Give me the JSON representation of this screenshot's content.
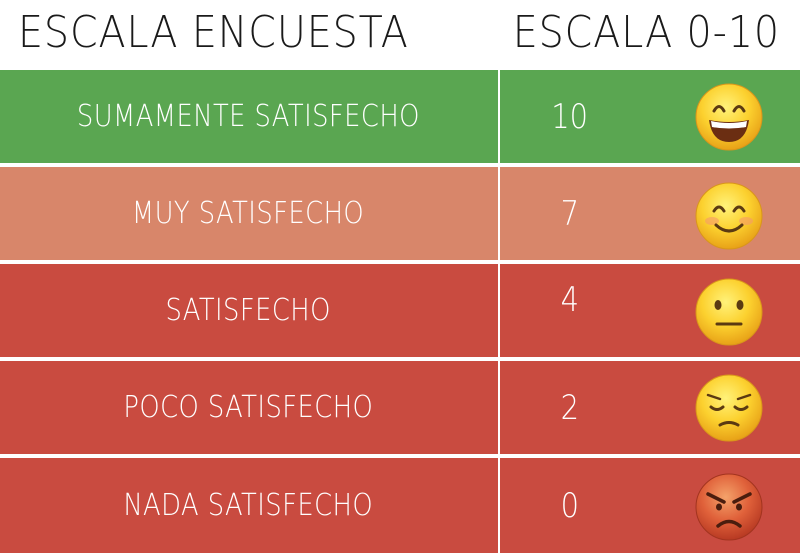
{
  "header": {
    "left_title": "ESCALA ENCUESTA",
    "right_title": "ESCALA 0-10"
  },
  "rows": [
    {
      "label": "SUMAMENTE SATISFECHO",
      "value": "10",
      "color": "#5aa651",
      "icon": "grinning-face-icon"
    },
    {
      "label": "MUY SATISFECHO",
      "value": "7",
      "color": "#d8866a",
      "icon": "smiling-face-icon"
    },
    {
      "label": "SATISFECHO",
      "value": "4",
      "color": "#c94b40",
      "icon": "neutral-face-icon"
    },
    {
      "label": "POCO SATISFECHO",
      "value": "2",
      "color": "#c94b40",
      "icon": "pensive-face-icon"
    },
    {
      "label": "NADA SATISFECHO",
      "value": "0",
      "color": "#c94b40",
      "icon": "angry-face-icon"
    }
  ]
}
